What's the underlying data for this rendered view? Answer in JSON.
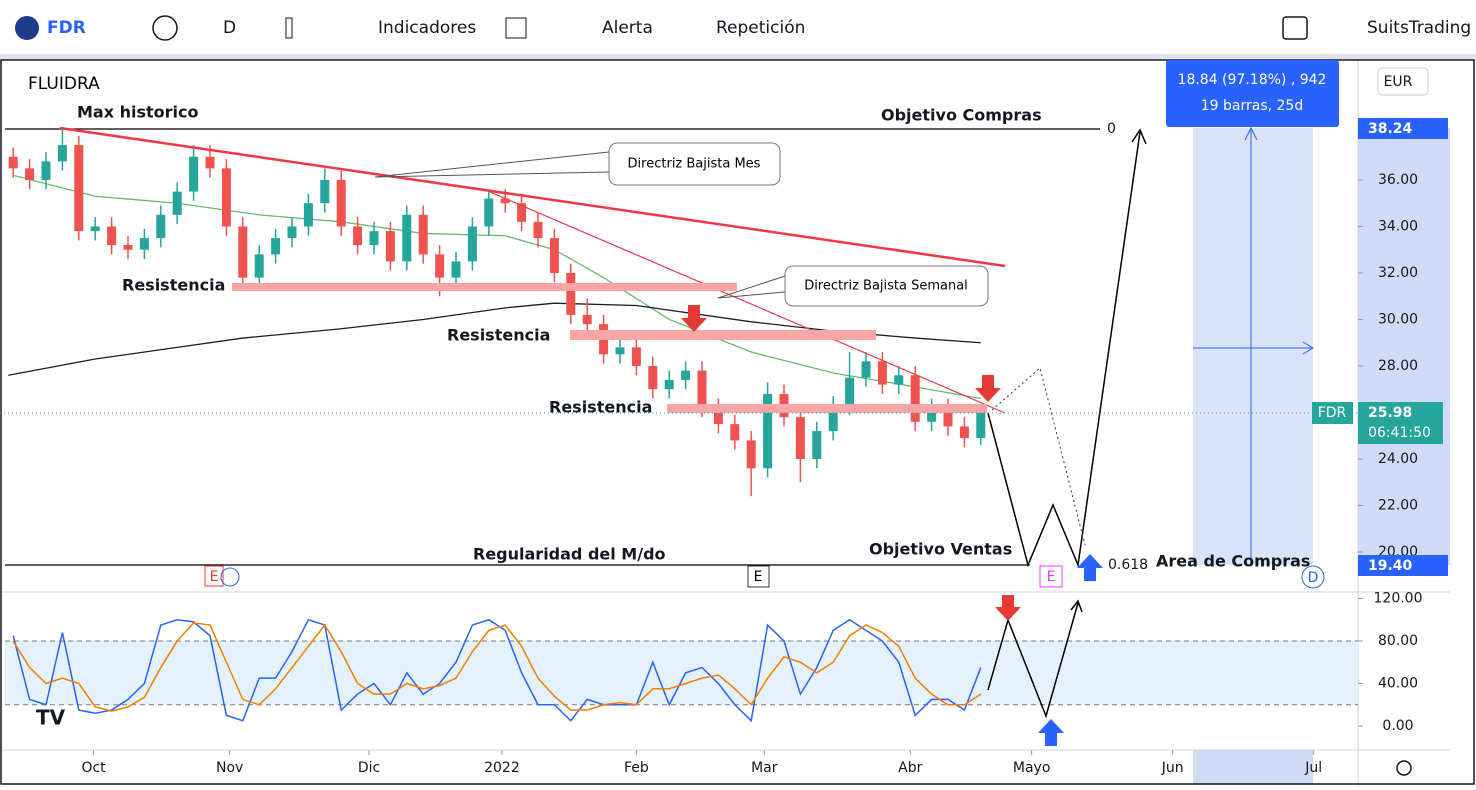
{
  "toolbar": {
    "symbol": "FDR",
    "interval": "D",
    "indicators": "Indicadores",
    "alert": "Alerta",
    "replay": "Repetición",
    "account": "SuitsTrading"
  },
  "chart_data": [
    {
      "type": "candlestick",
      "title": "FLUIDRA",
      "currency": "EUR",
      "xlim": [
        -0.5,
        82
      ],
      "xticks": [
        {
          "value": 4.9,
          "label": "Oct"
        },
        {
          "value": 13.2,
          "label": "Nov"
        },
        {
          "value": 21.7,
          "label": "Dic"
        },
        {
          "value": 29.8,
          "label": "2022"
        },
        {
          "value": 38.0,
          "label": "Feb"
        },
        {
          "value": 45.8,
          "label": "Mar"
        },
        {
          "value": 54.7,
          "label": "Abr"
        },
        {
          "value": 62.1,
          "label": "Mayo"
        },
        {
          "value": 70.7,
          "label": "Jun"
        },
        {
          "value": 79.3,
          "label": "Jul"
        }
      ],
      "ylim": [
        18.58,
        41.16
      ],
      "yticks": [
        {
          "value": 20,
          "label": "20.00"
        },
        {
          "value": 22,
          "label": "22.00"
        },
        {
          "value": 24,
          "label": "24.00"
        },
        {
          "value": 26,
          "label": "26.00"
        },
        {
          "value": 28,
          "label": "28.00"
        },
        {
          "value": 30,
          "label": "30.00"
        },
        {
          "value": 32,
          "label": "32.00"
        },
        {
          "value": 34,
          "label": "34.00"
        },
        {
          "value": 36,
          "label": "36.00"
        }
      ],
      "up_color": "#26a69a",
      "down_color": "#ef5350",
      "open": [
        37.0,
        36.5,
        36.0,
        36.8,
        37.5,
        33.8,
        34.0,
        33.2,
        33.0,
        33.5,
        34.5,
        35.5,
        37.0,
        36.5,
        34.0,
        31.8,
        32.8,
        33.5,
        34.0,
        35.0,
        36.0,
        34.0,
        33.2,
        33.8,
        32.5,
        34.5,
        32.8,
        31.8,
        32.5,
        34.0,
        35.2,
        35.0,
        34.2,
        33.5,
        32.0,
        30.2,
        29.8,
        28.5,
        28.8,
        28.0,
        27.0,
        27.4,
        27.8,
        26.2,
        25.5,
        24.8,
        23.6,
        26.8,
        25.8,
        24.0,
        25.2,
        26.3,
        27.5,
        28.2,
        27.2,
        27.6,
        25.6,
        26.2,
        25.4,
        24.9
      ],
      "high": [
        37.4,
        36.9,
        37.2,
        38.24,
        37.9,
        34.4,
        34.4,
        33.6,
        33.9,
        34.9,
        35.9,
        37.5,
        37.5,
        36.9,
        34.4,
        33.2,
        33.9,
        34.4,
        35.4,
        36.5,
        36.4,
        34.4,
        34.2,
        34.2,
        34.9,
        34.9,
        33.2,
        32.9,
        34.4,
        35.6,
        35.6,
        35.4,
        34.6,
        33.9,
        32.4,
        30.9,
        30.2,
        29.4,
        29.2,
        28.4,
        27.8,
        28.2,
        28.2,
        26.6,
        25.9,
        25.2,
        27.3,
        27.2,
        26.2,
        25.6,
        26.7,
        28.6,
        28.6,
        28.6,
        28.0,
        28.0,
        26.6,
        26.6,
        25.8,
        26.3
      ],
      "low": [
        36.1,
        35.6,
        35.6,
        36.4,
        33.4,
        33.4,
        32.8,
        32.6,
        32.6,
        33.1,
        34.1,
        35.1,
        36.1,
        33.6,
        31.4,
        31.4,
        32.4,
        33.1,
        33.6,
        34.6,
        33.6,
        32.8,
        32.8,
        32.1,
        32.1,
        32.4,
        31.0,
        31.4,
        32.1,
        33.6,
        34.6,
        33.8,
        33.1,
        31.6,
        29.8,
        29.4,
        28.1,
        28.1,
        27.6,
        26.6,
        26.6,
        27.0,
        25.8,
        25.1,
        24.4,
        22.4,
        23.2,
        25.4,
        23.0,
        23.6,
        24.8,
        25.9,
        27.1,
        26.8,
        26.8,
        25.2,
        25.2,
        25.0,
        24.5,
        24.6
      ],
      "close": [
        36.5,
        36.0,
        36.8,
        37.5,
        33.8,
        34.0,
        33.2,
        33.0,
        33.5,
        34.5,
        35.5,
        37.0,
        36.5,
        34.0,
        31.8,
        32.8,
        33.5,
        34.0,
        35.0,
        36.0,
        34.0,
        33.2,
        33.8,
        32.5,
        34.5,
        32.8,
        31.8,
        32.5,
        34.0,
        35.2,
        35.0,
        34.2,
        33.5,
        32.0,
        30.2,
        29.8,
        28.5,
        28.8,
        28.0,
        27.0,
        27.4,
        27.8,
        26.2,
        25.5,
        24.8,
        23.6,
        26.8,
        25.8,
        24.0,
        25.2,
        26.3,
        27.5,
        28.2,
        27.2,
        27.6,
        25.6,
        26.2,
        25.4,
        24.9,
        25.98
      ],
      "lines": [
        {
          "color": "#66bb6a",
          "x": [
            0,
            5,
            10,
            15,
            20,
            25,
            30,
            33,
            36,
            40,
            45,
            50,
            55,
            59
          ],
          "values": [
            36.2,
            35.3,
            35.0,
            34.5,
            34.2,
            33.7,
            33.6,
            33.0,
            31.8,
            30.0,
            28.6,
            27.7,
            27.1,
            26.6
          ]
        },
        {
          "color": "#1e1e1e",
          "x": [
            -0.3,
            5,
            10,
            14,
            20,
            25,
            30,
            33,
            38,
            45,
            50,
            55,
            59
          ],
          "values": [
            27.6,
            28.3,
            28.8,
            29.2,
            29.6,
            30.0,
            30.5,
            30.7,
            30.6,
            29.9,
            29.5,
            29.2,
            29.0
          ]
        }
      ],
      "annotations": {
        "max": "Max historico",
        "target_buy": "Objetivo Compras",
        "level_0": "0",
        "trend_month": "Directriz Bajista Mes",
        "res1": "Resistencia",
        "trend_week": "Directriz Bajista Semanal",
        "res2": "Resistencia",
        "res3": "Resistencia",
        "regularity": "Regularidad del M/do",
        "target_sell": "Objetivo Ventas",
        "fib": "0.618",
        "buy_area": "Area de Compras"
      },
      "events": [
        "E",
        "E",
        "E"
      ],
      "dividends": [
        "D",
        "D"
      ],
      "measure": [
        "18.84 (97.18%) , 942",
        "19 barras, 25d"
      ],
      "price_labels": {
        "top": "38.24",
        "symbol": "FDR",
        "last": "25.98",
        "countdown": "06:41:50",
        "bottom": "19.40"
      }
    },
    {
      "type": "line",
      "xlim": [
        -0.5,
        82
      ],
      "ylim": [
        -22.6,
        123.3
      ],
      "yticks": [
        {
          "value": 0,
          "label": "0.00"
        },
        {
          "value": 40,
          "label": "40.00"
        },
        {
          "value": 80,
          "label": "80.00"
        },
        {
          "value": 120,
          "label": "120.00"
        }
      ],
      "band": [
        20,
        80
      ],
      "series": [
        {
          "color": "#2962ff",
          "values": [
            85,
            25,
            20,
            88,
            15,
            12,
            15,
            25,
            40,
            95,
            100,
            98,
            85,
            10,
            5,
            45,
            45,
            70,
            100,
            95,
            15,
            30,
            40,
            20,
            50,
            30,
            40,
            60,
            95,
            100,
            90,
            50,
            20,
            20,
            5,
            25,
            20,
            20,
            20,
            60,
            20,
            50,
            55,
            40,
            20,
            5,
            95,
            80,
            30,
            55,
            90,
            100,
            90,
            80,
            60,
            10,
            25,
            25,
            15,
            55
          ]
        },
        {
          "color": "#f57c00",
          "values": [
            80,
            55,
            40,
            45,
            40,
            18,
            14,
            18,
            27,
            55,
            80,
            97,
            95,
            60,
            25,
            20,
            35,
            55,
            75,
            95,
            70,
            40,
            30,
            30,
            40,
            35,
            38,
            45,
            70,
            90,
            95,
            75,
            45,
            28,
            15,
            15,
            20,
            22,
            20,
            35,
            35,
            40,
            45,
            48,
            35,
            20,
            45,
            65,
            60,
            50,
            60,
            85,
            95,
            88,
            75,
            45,
            30,
            20,
            20,
            30
          ]
        }
      ]
    }
  ]
}
